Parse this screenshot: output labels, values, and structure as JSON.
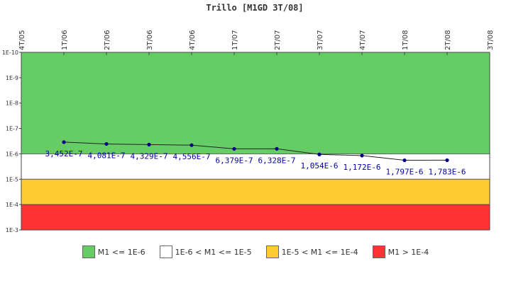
{
  "chart_data": {
    "type": "line",
    "title": "Trillo [M1GD 3T/08]",
    "xlabel": "",
    "ylabel": "",
    "y_scale": "log",
    "y_axis_reversed": true,
    "ylim": [
      1e-10,
      0.001
    ],
    "y_ticks": [
      "1E-10",
      "1E-9",
      "1E-8",
      "1E-7",
      "1E-6",
      "1E-5",
      "1E-4",
      "1E-3"
    ],
    "x_ticks": [
      "4T/05",
      "1T/06",
      "2T/06",
      "3T/06",
      "4T/06",
      "1T/07",
      "2T/07",
      "3T/07",
      "4T/07",
      "1T/08",
      "2T/08",
      "3T/08"
    ],
    "categories": [
      "1T/06",
      "2T/06",
      "3T/06",
      "4T/06",
      "1T/07",
      "2T/07",
      "3T/07",
      "4T/07",
      "1T/08",
      "2T/08"
    ],
    "series": [
      {
        "values": [
          3.452e-07,
          4.081e-07,
          4.329e-07,
          4.556e-07,
          6.379e-07,
          6.328e-07,
          1.054e-06,
          1.172e-06,
          1.797e-06,
          1.783e-06
        ],
        "labels": [
          "3,452E-7",
          "4,081E-7",
          "4,329E-7",
          "4,556E-7",
          "6,379E-7",
          "6,328E-7",
          "1,054E-6",
          "1,172E-6",
          "1,797E-6",
          "1,783E-6"
        ],
        "color": "#000080"
      }
    ],
    "bands": [
      {
        "label": "M1 <= 1E-6",
        "from": 1e-10,
        "to": 1e-06,
        "color": "#66cc66"
      },
      {
        "label": "1E-6 < M1 <= 1E-5",
        "from": 1e-06,
        "to": 1e-05,
        "color": "#ffffff"
      },
      {
        "label": "1E-5 < M1 <= 1E-4",
        "from": 1e-05,
        "to": 0.0001,
        "color": "#ffcc33"
      },
      {
        "label": "M1 > 1E-4",
        "from": 0.0001,
        "to": 0.001,
        "color": "#ff3333"
      }
    ],
    "legend_position": "bottom",
    "grid": false
  }
}
